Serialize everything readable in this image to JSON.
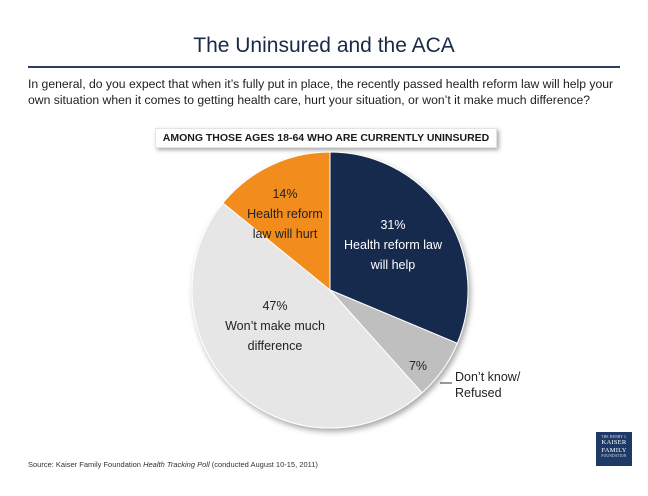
{
  "title": "The Uninsured and the ACA",
  "question": "In general, do you expect that when it’s fully put in place, the recently passed health reform law will help your own situation when it comes to getting health care, hurt your situation, or won’t it make much difference?",
  "subheader": "AMONG THOSE AGES 18-64 WHO ARE CURRENTLY UNINSURED",
  "source": {
    "prefix": "Source: Kaiser Family Foundation ",
    "poll": "Health Tracking Poll",
    "suffix": " (conducted August 10-15, 2011)"
  },
  "logo": {
    "top": "THE HENRY J.",
    "line1": "KAISER",
    "line2": "FAMILY",
    "bottom": "FOUNDATION"
  },
  "colors": {
    "help": "#172a4e",
    "dont_know": "#bfbfbf",
    "no_difference": "#e6e6e6",
    "hurt": "#f28c1e",
    "title_rule": "#2b3f63"
  },
  "chart_data": {
    "type": "pie",
    "title": "",
    "slices": [
      {
        "label": "Health reform law will help",
        "value": 31,
        "value_label": "31%",
        "color": "#172a4e",
        "text_color": "#ffffff"
      },
      {
        "label": "Don’t know/ Refused",
        "value": 7,
        "value_label": "7%",
        "color": "#bfbfbf",
        "text_color": "#222222"
      },
      {
        "label": "Won’t make much difference",
        "value": 47,
        "value_label": "47%",
        "color": "#e6e6e6",
        "text_color": "#222222"
      },
      {
        "label": "Health reform law will hurt",
        "value": 14,
        "value_label": "14%",
        "color": "#f28c1e",
        "text_color": "#222222"
      }
    ]
  }
}
